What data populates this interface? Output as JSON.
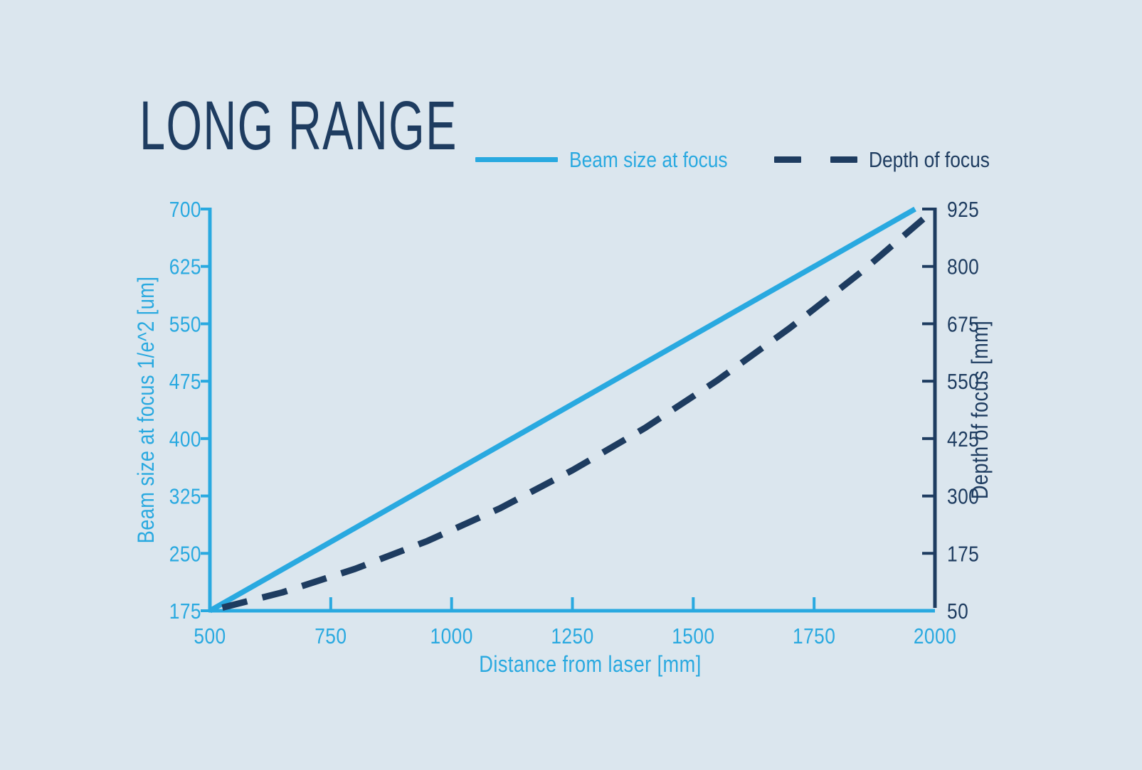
{
  "title": "LONG RANGE",
  "colors": {
    "background": "#dbe6ee",
    "accent_blue": "#29a9e0",
    "navy": "#1e3c60"
  },
  "legend": {
    "items": [
      {
        "label": "Beam size at focus",
        "style": "solid",
        "color": "#29a9e0"
      },
      {
        "label": "Depth of focus",
        "style": "dashed",
        "color": "#1e3c60"
      }
    ]
  },
  "chart_data": {
    "type": "line",
    "title": "LONG RANGE",
    "xlabel": "Distance from laser [mm]",
    "xlim": [
      500,
      2000
    ],
    "x_ticks": [
      500,
      750,
      1000,
      1250,
      1500,
      1750,
      2000
    ],
    "grid": false,
    "legend_position": "top",
    "axes": {
      "left": {
        "label": "Beam size at focus 1/e^2 [um]",
        "lim": [
          175,
          700
        ],
        "ticks": [
          175,
          250,
          325,
          400,
          475,
          550,
          625,
          700
        ],
        "color": "#29a9e0"
      },
      "right": {
        "label": "Depth of focus [mm]",
        "lim": [
          50,
          925
        ],
        "ticks": [
          50,
          175,
          300,
          425,
          550,
          675,
          800,
          925
        ],
        "color": "#1e3c60"
      }
    },
    "series": [
      {
        "name": "Beam size at focus",
        "axis": "left",
        "style": "solid",
        "color": "#29a9e0",
        "points": [
          [
            500,
            175
          ],
          [
            1000,
            355
          ],
          [
            1500,
            535
          ],
          [
            1959,
            700
          ]
        ]
      },
      {
        "name": "Depth of focus",
        "axis": "right",
        "style": "dashed",
        "color": "#1e3c60",
        "points": [
          [
            500,
            50
          ],
          [
            650,
            90
          ],
          [
            800,
            141
          ],
          [
            950,
            202
          ],
          [
            1100,
            273
          ],
          [
            1250,
            356
          ],
          [
            1400,
            448
          ],
          [
            1550,
            552
          ],
          [
            1700,
            666
          ],
          [
            1850,
            790
          ],
          [
            2000,
            925
          ]
        ]
      }
    ]
  }
}
